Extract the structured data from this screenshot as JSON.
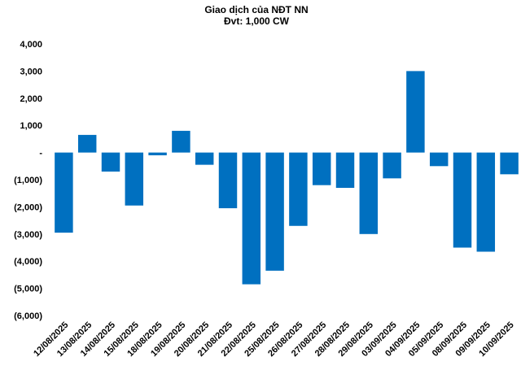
{
  "chart_data": {
    "type": "bar",
    "title": "Giao dịch của NĐT NN",
    "subtitle": "Đvt: 1,000 CW",
    "xlabel": "",
    "ylabel": "",
    "ylim": [
      -6000,
      4000
    ],
    "yticks": [
      4000,
      3000,
      2000,
      1000,
      0,
      -1000,
      -2000,
      -3000,
      -4000,
      -5000,
      -6000
    ],
    "ytick_labels": [
      "4,000",
      "3,000",
      "2,000",
      "1,000",
      "-",
      "(1,000)",
      "(2,000)",
      "(3,000)",
      "(4,000)",
      "(5,000)",
      "(6,000)"
    ],
    "grid": false,
    "legend": "none",
    "bar_color": "#0070C0",
    "categories": [
      "12/08/2025",
      "13/08/2025",
      "14/08/2025",
      "15/08/2025",
      "18/08/2025",
      "19/08/2025",
      "20/08/2025",
      "21/08/2025",
      "22/08/2025",
      "25/08/2025",
      "26/08/2025",
      "27/08/2025",
      "28/08/2025",
      "29/08/2025",
      "03/09/2025",
      "04/09/2025",
      "05/09/2025",
      "08/09/2025",
      "09/09/2025",
      "10/09/2025"
    ],
    "values": [
      -2950,
      650,
      -700,
      -1950,
      -100,
      800,
      -450,
      -2050,
      -4850,
      -4350,
      -2700,
      -1200,
      -1300,
      -3000,
      -950,
      3000,
      -500,
      -3500,
      -3650,
      -800
    ]
  }
}
